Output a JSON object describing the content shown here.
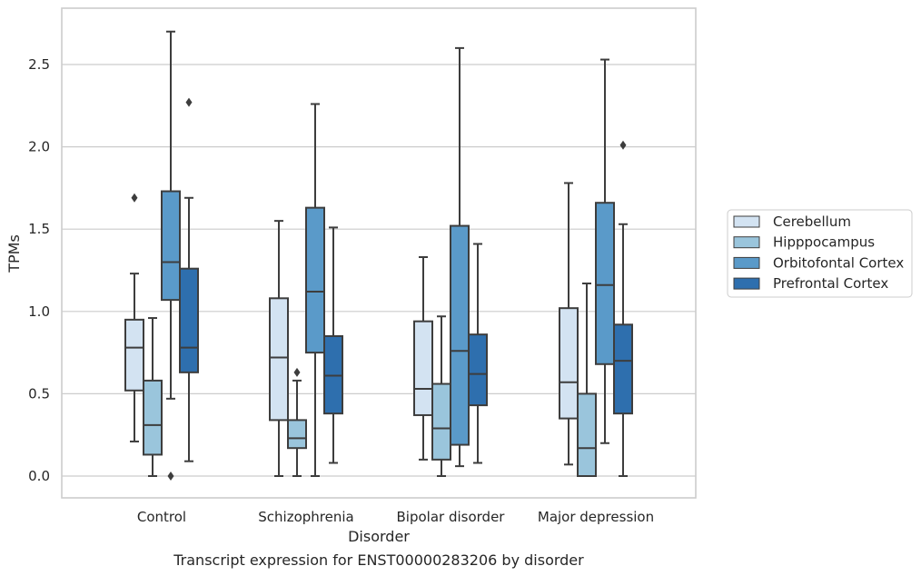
{
  "caption": "Transcript expression for ENST00000283206 by disorder",
  "chart_data": {
    "type": "boxplot",
    "xlabel": "Disorder",
    "ylabel": "TPMs",
    "ylim": [
      -0.13,
      2.86
    ],
    "yticks": [
      0.0,
      0.5,
      1.0,
      1.5,
      2.0,
      2.5
    ],
    "ytick_labels": [
      "0.0",
      "0.5",
      "1.0",
      "1.5",
      "2.0",
      "2.5"
    ],
    "grid": "horizontal",
    "legend_position": "right",
    "categories": [
      "Control",
      "Schizophrenia",
      "Bipolar disorder",
      "Major depression"
    ],
    "series": [
      {
        "name": "Cerebellum",
        "color": "#d3e3f2",
        "boxes": [
          {
            "whislo": 0.21,
            "q1": 0.52,
            "med": 0.78,
            "q3": 0.95,
            "whishi": 1.23,
            "fliers": [
              1.69
            ]
          },
          {
            "whislo": 0.0,
            "q1": 0.34,
            "med": 0.72,
            "q3": 1.08,
            "whishi": 1.55,
            "fliers": []
          },
          {
            "whislo": 0.1,
            "q1": 0.37,
            "med": 0.53,
            "q3": 0.94,
            "whishi": 1.33,
            "fliers": []
          },
          {
            "whislo": 0.07,
            "q1": 0.35,
            "med": 0.57,
            "q3": 1.02,
            "whishi": 1.78,
            "fliers": []
          }
        ]
      },
      {
        "name": "Hipppocampus",
        "color": "#9ac5dc",
        "boxes": [
          {
            "whislo": 0.0,
            "q1": 0.13,
            "med": 0.31,
            "q3": 0.58,
            "whishi": 0.96,
            "fliers": []
          },
          {
            "whislo": 0.0,
            "q1": 0.17,
            "med": 0.23,
            "q3": 0.34,
            "whishi": 0.58,
            "fliers": [
              0.63
            ]
          },
          {
            "whislo": 0.0,
            "q1": 0.1,
            "med": 0.29,
            "q3": 0.56,
            "whishi": 0.97,
            "fliers": []
          },
          {
            "whislo": 0.0,
            "q1": 0.0,
            "med": 0.17,
            "q3": 0.5,
            "whishi": 1.17,
            "fliers": []
          }
        ]
      },
      {
        "name": "Orbitofontal Cortex",
        "color": "#5a9ac9",
        "boxes": [
          {
            "whislo": 0.47,
            "q1": 1.07,
            "med": 1.3,
            "q3": 1.73,
            "whishi": 2.7,
            "fliers": [
              0.0
            ]
          },
          {
            "whislo": 0.0,
            "q1": 0.75,
            "med": 1.12,
            "q3": 1.63,
            "whishi": 2.26,
            "fliers": []
          },
          {
            "whislo": 0.06,
            "q1": 0.19,
            "med": 0.76,
            "q3": 1.52,
            "whishi": 2.6,
            "fliers": []
          },
          {
            "whislo": 0.2,
            "q1": 0.68,
            "med": 1.16,
            "q3": 1.66,
            "whishi": 2.53,
            "fliers": []
          }
        ]
      },
      {
        "name": "Prefrontal Cortex",
        "color": "#2e6fae",
        "boxes": [
          {
            "whislo": 0.09,
            "q1": 0.63,
            "med": 0.78,
            "q3": 1.26,
            "whishi": 1.69,
            "fliers": [
              2.27
            ]
          },
          {
            "whislo": 0.08,
            "q1": 0.38,
            "med": 0.61,
            "q3": 0.85,
            "whishi": 1.51,
            "fliers": []
          },
          {
            "whislo": 0.08,
            "q1": 0.43,
            "med": 0.62,
            "q3": 0.86,
            "whishi": 1.41,
            "fliers": []
          },
          {
            "whislo": 0.0,
            "q1": 0.38,
            "med": 0.7,
            "q3": 0.92,
            "whishi": 1.53,
            "fliers": [
              2.01
            ]
          }
        ]
      }
    ]
  }
}
